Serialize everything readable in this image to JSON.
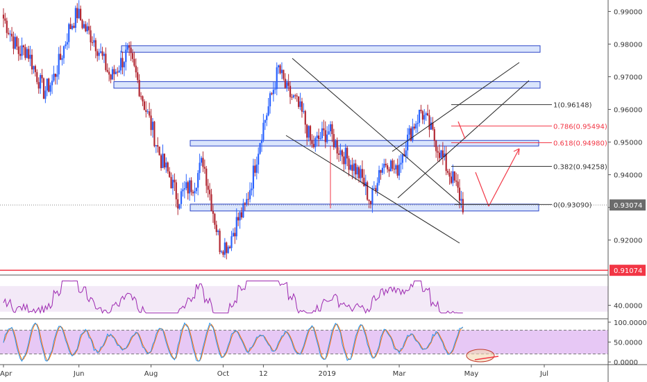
{
  "chart_data": [
    {
      "type": "candlestick",
      "price_axis": {
        "ticks": [
          "0.99000",
          "0.98000",
          "0.97000",
          "0.96000",
          "0.95000",
          "0.94000",
          "0.93000",
          "0.92000"
        ],
        "tick_values": [
          0.99,
          0.98,
          0.97,
          0.96,
          0.95,
          0.94,
          0.93,
          0.92
        ],
        "range": [
          0.9095,
          0.9935
        ]
      },
      "time_axis": {
        "labels": [
          "Apr",
          "Jun",
          "Aug",
          "Oct",
          "12",
          "2019",
          "Mar",
          "May",
          "Jul"
        ],
        "label_weeks": [
          0,
          9,
          17.6,
          26.2,
          31,
          38.6,
          47.2,
          55.8,
          64.5
        ],
        "range_weeks": [
          0,
          73
        ]
      },
      "weekly_close": [
        0.989,
        0.9835,
        0.9775,
        0.9785,
        0.9715,
        0.9655,
        0.9685,
        0.9755,
        0.9845,
        0.9895,
        0.9845,
        0.9815,
        0.9755,
        0.9695,
        0.9735,
        0.9775,
        0.9705,
        0.9615,
        0.9535,
        0.9445,
        0.9395,
        0.9325,
        0.9355,
        0.9375,
        0.9445,
        0.9315,
        0.9185,
        0.9185,
        0.9255,
        0.9295,
        0.9405,
        0.9535,
        0.9625,
        0.9725,
        0.9655,
        0.9625,
        0.9575,
        0.9485,
        0.9515,
        0.9535,
        0.9485,
        0.9455,
        0.9425,
        0.9385,
        0.9315,
        0.9415,
        0.9445,
        0.9405,
        0.9485,
        0.9545,
        0.9595,
        0.9545,
        0.9485,
        0.9425,
        0.9375,
        0.9307
      ],
      "current_price": "0.93074",
      "horizontal_line": {
        "label": "0.91074",
        "value": 0.91074,
        "color": "#f23645"
      },
      "zones": [
        {
          "low": 0.9775,
          "high": 0.9795
        },
        {
          "low": 0.9665,
          "high": 0.9685
        },
        {
          "low": 0.9488,
          "high": 0.9505
        },
        {
          "low": 0.9289,
          "high": 0.931
        }
      ],
      "fibonacci": [
        {
          "label": "1(0.96148)",
          "value": 0.96148,
          "color": "#333333"
        },
        {
          "label": "0.786(0.95494)",
          "value": 0.95494,
          "color": "#f23645"
        },
        {
          "label": "0.618(0.94980)",
          "value": 0.9498,
          "color": "#f23645"
        },
        {
          "label": "0.382(0.94258)",
          "value": 0.94258,
          "color": "#333333"
        },
        {
          "label": "0(0.93090)",
          "value": 0.9309,
          "color": "#333333"
        }
      ]
    },
    {
      "type": "line",
      "indicator": "rsi",
      "ticks": [
        "40.0000"
      ],
      "tick_values": [
        40
      ],
      "range": [
        20,
        85
      ],
      "band": [
        30,
        70
      ]
    },
    {
      "type": "line",
      "indicator": "stochastic",
      "ticks": [
        "100.0000",
        "50.0000",
        "0.0000"
      ],
      "tick_values": [
        100,
        50,
        0
      ],
      "range": [
        -5,
        105
      ],
      "band": [
        20,
        80
      ]
    }
  ],
  "colors": {
    "bull": "#2962ff",
    "bear": "#b22833",
    "zone_fill": "#d4e0fb",
    "zone_border": "#2a44c8",
    "red": "#f23645",
    "rsi_line": "#9c27b0",
    "rsi_band": "#f3e9f7",
    "stoch_band": "#e7c8f5",
    "stoch_k": "#2196f3",
    "stoch_d": "#ff6d00",
    "current_badge": "#6b6b6b"
  }
}
